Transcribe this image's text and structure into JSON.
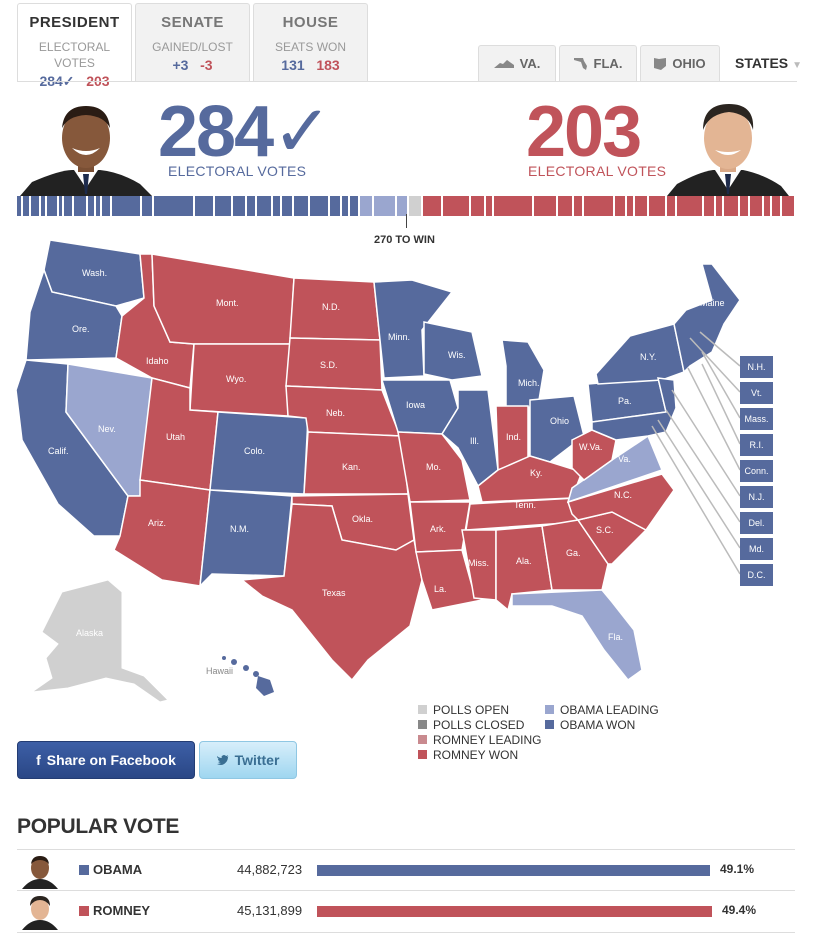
{
  "tabs": {
    "president": {
      "title": "PRESIDENT",
      "sub1": "ELECTORAL",
      "sub2": "VOTES",
      "obama": "284✓",
      "romney": "203"
    },
    "senate": {
      "title": "SENATE",
      "sub": "GAINED/LOST",
      "dem": "+3",
      "rep": "-3"
    },
    "house": {
      "title": "HOUSE",
      "sub": "SEATS WON",
      "dem": "131",
      "rep": "183"
    }
  },
  "state_tabs": {
    "va": "VA.",
    "fla": "FLA.",
    "ohio": "OHIO",
    "states": "STATES"
  },
  "obama": {
    "votes": "284",
    "check": "✓",
    "label": "ELECTORAL VOTES"
  },
  "romney": {
    "votes": "203",
    "label": "ELECTORAL VOTES"
  },
  "win_label": "270 TO WIN",
  "colors": {
    "obama_won": "#566a9d",
    "obama_leading": "#9aa6cf",
    "romney_won": "#c0535a",
    "romney_leading": "#c98a8f",
    "polls_open": "#d0d0d0",
    "polls_closed": "#888888"
  },
  "map_labels": {
    "wash": "Wash.",
    "ore": "Ore.",
    "calif": "Calif.",
    "nev": "Nev.",
    "idaho": "Idaho",
    "mont": "Mont.",
    "wyo": "Wyo.",
    "utah": "Utah",
    "ariz": "Ariz.",
    "colo": "Colo.",
    "nm": "N.M.",
    "nd": "N.D.",
    "sd": "S.D.",
    "neb": "Neb.",
    "kan": "Kan.",
    "okla": "Okla.",
    "texas": "Texas",
    "minn": "Minn.",
    "iowa": "Iowa",
    "mo": "Mo.",
    "ark": "Ark.",
    "la": "La.",
    "wis": "Wis.",
    "ill": "Ill.",
    "mich": "Mich.",
    "ind": "Ind.",
    "ohio": "Ohio",
    "ky": "Ky.",
    "tenn": "Tenn.",
    "miss": "Miss.",
    "ala": "Ala.",
    "ga": "Ga.",
    "fla": "Fla.",
    "sc": "S.C.",
    "nc": "N.C.",
    "va": "Va.",
    "wva": "W.Va.",
    "pa": "Pa.",
    "ny": "N.Y.",
    "maine": "Maine",
    "alaska": "Alaska",
    "hawaii": "Hawaii"
  },
  "small_states": [
    "N.H.",
    "Vt.",
    "Mass.",
    "R.I.",
    "Conn.",
    "N.J.",
    "Del.",
    "Md.",
    "D.C."
  ],
  "legend": {
    "polls_open": "POLLS OPEN",
    "polls_closed": "POLLS CLOSED",
    "romney_leading": "ROMNEY LEADING",
    "romney_won": "ROMNEY WON",
    "obama_leading": "OBAMA LEADING",
    "obama_won": "OBAMA WON"
  },
  "share": {
    "facebook": "Share on Facebook",
    "twitter": "Twitter"
  },
  "popular_vote": {
    "title": "POPULAR VOTE",
    "rows": [
      {
        "name": "OBAMA",
        "votes": "44,882,723",
        "pct": "49.1%",
        "share": 0.491
      },
      {
        "name": "ROMNEY",
        "votes": "45,131,899",
        "pct": "49.4%",
        "share": 0.494
      }
    ]
  }
}
